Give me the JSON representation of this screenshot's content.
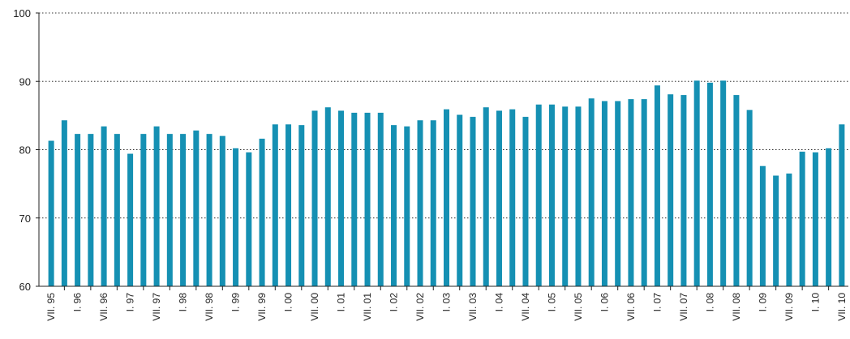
{
  "chart_data": {
    "type": "bar",
    "color": "#1590b3",
    "grid": true,
    "ylim": [
      60,
      100
    ],
    "yticks": [
      60,
      70,
      80,
      90,
      100
    ],
    "categories": [
      "VII. 95",
      null,
      "I. 96",
      null,
      "VII. 96",
      null,
      "I. 97",
      null,
      "VII. 97",
      null,
      "I. 98",
      null,
      "VII. 98",
      null,
      "I. 99",
      null,
      "VII. 99",
      null,
      "I. 00",
      null,
      "VII. 00",
      null,
      "I. 01",
      null,
      "VII. 01",
      null,
      "I. 02",
      null,
      "VII. 02",
      null,
      "I. 03",
      null,
      "VII. 03",
      null,
      "I. 04",
      null,
      "VII. 04",
      null,
      "I. 05",
      null,
      "VII. 05",
      null,
      "I. 06",
      null,
      "VII. 06",
      null,
      "I. 07",
      null,
      "VII. 07",
      null,
      "I. 08",
      null,
      "VII. 08",
      null,
      "I. 09",
      null,
      "VII. 09",
      null,
      "I. 10",
      null,
      "VII. 10"
    ],
    "values": [
      81.3,
      84.3,
      82.3,
      82.3,
      83.4,
      82.3,
      79.4,
      82.3,
      83.4,
      82.3,
      82.3,
      82.8,
      82.3,
      82.0,
      80.2,
      79.6,
      81.6,
      83.7,
      83.7,
      83.6,
      85.7,
      86.2,
      85.7,
      85.4,
      85.4,
      85.4,
      83.6,
      83.4,
      84.3,
      84.3,
      85.9,
      85.1,
      84.8,
      86.2,
      85.7,
      85.9,
      84.8,
      86.6,
      86.6,
      86.3,
      86.3,
      87.5,
      87.1,
      87.1,
      87.4,
      87.4,
      89.4,
      88.1,
      88.0,
      90.1,
      89.8,
      90.1,
      88.0,
      85.8,
      77.6,
      76.2,
      76.5,
      79.7,
      79.6,
      80.2,
      83.7
    ]
  }
}
